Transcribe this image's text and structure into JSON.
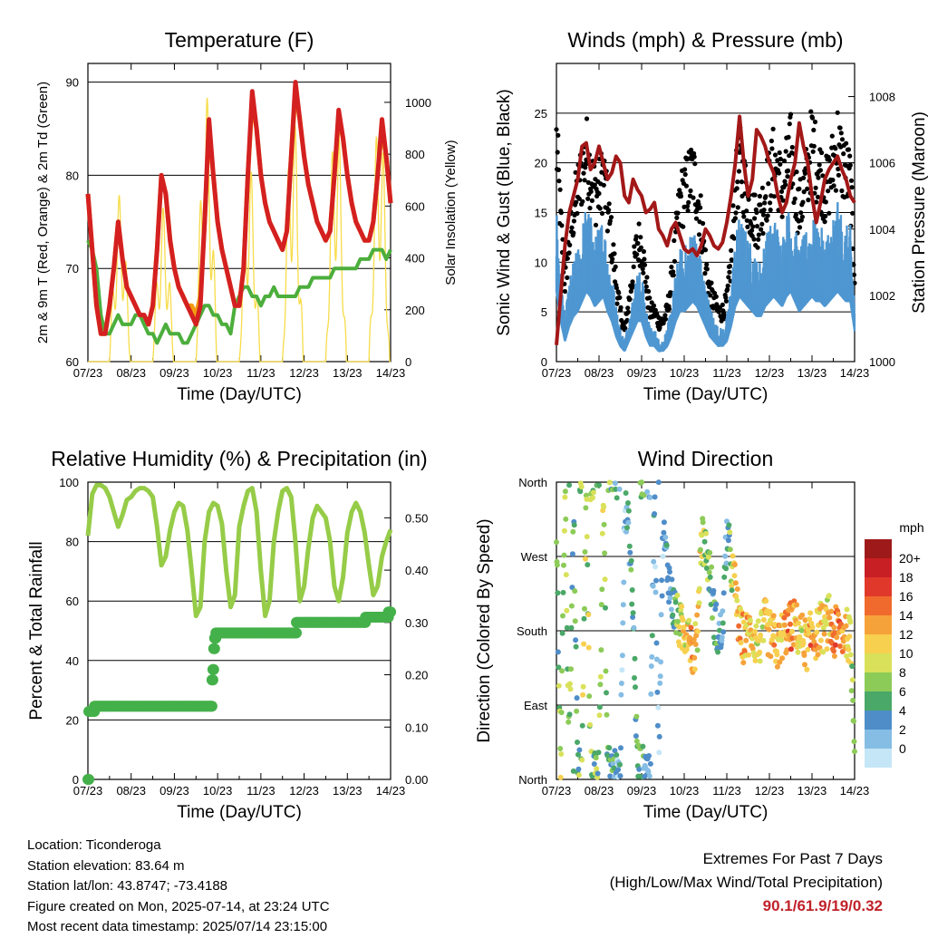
{
  "x_ticks": [
    "07/23",
    "08/23",
    "09/23",
    "10/23",
    "11/23",
    "12/23",
    "13/23",
    "14/23"
  ],
  "colors": {
    "temp_red": "#d42020",
    "temp_orange": "#f39c12",
    "dewpoint_green": "#4cae3c",
    "solar_yellow": "#f7dc4a",
    "wind_blue": "#4f97d1",
    "gust_black": "#000000",
    "pressure_maroon": "#a31818",
    "rh_lightgreen": "#96cc48",
    "precip_green": "#44b04a"
  },
  "chart_data": [
    {
      "id": "temperature",
      "type": "line",
      "title": "Temperature (F)",
      "xlabel": "Time (Day/UTC)",
      "ylabel": "2m & 9m T (Red, Orange) & 2m Td (Green)",
      "ylabel_right": "Solar Insolation (Yellow)",
      "ylim": [
        60,
        92
      ],
      "ylim_right": [
        0,
        1150
      ],
      "yticks": [
        60,
        70,
        80,
        90
      ],
      "yticks_right": [
        0,
        200,
        400,
        600,
        800,
        1000
      ],
      "x_days": [
        0,
        0.1,
        0.2,
        0.3,
        0.4,
        0.5,
        0.6,
        0.7,
        0.8,
        0.9,
        1.0,
        1.1,
        1.2,
        1.3,
        1.4,
        1.5,
        1.6,
        1.7,
        1.8,
        1.9,
        2.0,
        2.1,
        2.2,
        2.3,
        2.4,
        2.5,
        2.6,
        2.7,
        2.8,
        2.9,
        3.0,
        3.1,
        3.2,
        3.3,
        3.4,
        3.5,
        3.6,
        3.7,
        3.8,
        3.9,
        4.0,
        4.1,
        4.2,
        4.3,
        4.4,
        4.5,
        4.6,
        4.7,
        4.8,
        4.9,
        5.0,
        5.1,
        5.2,
        5.3,
        5.4,
        5.5,
        5.6,
        5.7,
        5.8,
        5.9,
        6.0,
        6.1,
        6.2,
        6.3,
        6.4,
        6.5,
        6.6,
        6.7,
        6.8,
        6.9,
        7.0
      ],
      "series": [
        {
          "name": "2m T",
          "color": "temp_red",
          "values": [
            78,
            72,
            66,
            63,
            63,
            66,
            70,
            75,
            71,
            68,
            67,
            66,
            65,
            65,
            64,
            66,
            72,
            80,
            78,
            73,
            70,
            68,
            67,
            66,
            65,
            64,
            66,
            75,
            86,
            80,
            75,
            72,
            70,
            68,
            66,
            66,
            70,
            80,
            89,
            85,
            80,
            77,
            75,
            74,
            73,
            72,
            74,
            82,
            90,
            86,
            82,
            79,
            77,
            75,
            74,
            73,
            74,
            80,
            87,
            84,
            80,
            77,
            75,
            74,
            73,
            73,
            75,
            80,
            86,
            82,
            77
          ]
        },
        {
          "name": "9m T",
          "color": "temp_orange",
          "values": [
            78,
            72,
            66,
            63,
            63,
            66,
            70,
            75,
            71,
            68,
            67,
            66,
            65,
            65,
            64,
            66,
            72,
            80,
            78,
            73,
            70,
            68,
            67,
            66,
            66,
            65,
            67,
            75,
            85,
            80,
            75,
            72,
            70,
            68,
            66,
            66,
            70,
            80,
            88,
            85,
            80,
            77,
            75,
            74,
            73,
            72,
            74,
            82,
            89,
            86,
            82,
            79,
            77,
            75,
            74,
            73,
            74,
            80,
            86,
            84,
            80,
            77,
            75,
            74,
            73,
            73,
            75,
            80,
            85,
            82,
            77
          ]
        },
        {
          "name": "2m Td",
          "color": "dewpoint_green",
          "values": [
            73,
            72,
            70,
            65,
            63,
            63,
            64,
            65,
            64,
            64,
            64,
            65,
            65,
            64,
            63,
            63,
            62,
            63,
            64,
            63,
            63,
            63,
            62,
            62,
            63,
            64,
            65,
            66,
            66,
            65,
            65,
            64,
            64,
            63,
            66,
            67,
            68,
            68,
            67,
            67,
            66,
            67,
            67,
            68,
            67,
            67,
            67,
            67,
            67,
            68,
            68,
            68,
            69,
            69,
            69,
            69,
            69,
            70,
            70,
            70,
            70,
            70,
            70,
            71,
            71,
            71,
            72,
            72,
            72,
            71,
            72
          ]
        }
      ]
    },
    {
      "id": "winds",
      "type": "scatter",
      "title": "Winds (mph) & Pressure (mb)",
      "xlabel": "Time (Day/UTC)",
      "ylabel": "Sonic Wind & Gust (Blue, Black)",
      "ylabel_right": "Station Pressure (Maroon)",
      "ylim": [
        0,
        30
      ],
      "ylim_right": [
        1000,
        1009
      ],
      "yticks": [
        0,
        5,
        10,
        15,
        20,
        25
      ],
      "yticks_right": [
        1000,
        1002,
        1004,
        1006,
        1008
      ],
      "x_days": [
        0,
        0.1,
        0.2,
        0.3,
        0.4,
        0.5,
        0.6,
        0.7,
        0.8,
        0.9,
        1.0,
        1.1,
        1.2,
        1.3,
        1.4,
        1.5,
        1.6,
        1.7,
        1.8,
        1.9,
        2.0,
        2.1,
        2.2,
        2.3,
        2.4,
        2.5,
        2.6,
        2.7,
        2.8,
        2.9,
        3.0,
        3.1,
        3.2,
        3.3,
        3.4,
        3.5,
        3.6,
        3.7,
        3.8,
        3.9,
        4.0,
        4.1,
        4.2,
        4.3,
        4.4,
        4.5,
        4.6,
        4.7,
        4.8,
        4.9,
        5.0,
        5.1,
        5.2,
        5.3,
        5.4,
        5.5,
        5.6,
        5.7,
        5.8,
        5.9,
        6.0,
        6.1,
        6.2,
        6.3,
        6.4,
        6.5,
        6.6,
        6.7,
        6.8,
        6.9,
        7.0
      ],
      "series": [
        {
          "name": "Sonic Wind",
          "color": "wind_blue",
          "values": [
            14,
            8,
            4,
            7,
            9,
            10,
            12,
            14,
            13,
            11,
            12,
            13,
            10,
            8,
            5,
            3,
            2,
            4,
            6,
            8,
            8,
            5,
            3,
            3,
            2,
            2,
            3,
            5,
            8,
            10,
            10,
            11,
            12,
            11,
            9,
            7,
            5,
            4,
            3,
            3,
            4,
            7,
            11,
            13,
            12,
            11,
            10,
            9,
            9,
            11,
            12,
            13,
            12,
            11,
            13,
            14,
            12,
            10,
            11,
            12,
            13,
            12,
            12,
            11,
            12,
            13,
            14,
            13,
            12,
            12,
            6
          ]
        },
        {
          "name": "Gust",
          "color": "gust_black",
          "values": [
            22,
            14,
            8,
            12,
            15,
            17,
            19,
            21,
            19,
            17,
            17,
            19,
            15,
            12,
            8,
            5,
            3,
            6,
            9,
            12,
            12,
            8,
            5,
            5,
            4,
            4,
            5,
            8,
            12,
            16,
            17,
            18,
            19,
            17,
            14,
            10,
            7,
            6,
            5,
            5,
            6,
            10,
            17,
            20,
            18,
            16,
            15,
            14,
            15,
            17,
            18,
            20,
            19,
            17,
            19,
            21,
            18,
            15,
            17,
            19,
            22,
            20,
            19,
            17,
            18,
            20,
            22,
            20,
            19,
            18,
            9
          ]
        },
        {
          "name": "Station Pressure",
          "color": "pressure_maroon",
          "values": [
            1000.5,
            1002,
            1003.5,
            1004.5,
            1005,
            1005.5,
            1006.5,
            1006.6,
            1005.8,
            1006,
            1006.5,
            1006,
            1005.5,
            1005.7,
            1006.2,
            1006,
            1005,
            1004.8,
            1005.5,
            1005.2,
            1005,
            1004.5,
            1004.6,
            1004.8,
            1004,
            1003.8,
            1003.5,
            1004,
            1004.2,
            1003.8,
            1003.4,
            1003.3,
            1003.4,
            1003.2,
            1003.5,
            1004,
            1003.8,
            1003.5,
            1003.4,
            1003.6,
            1004.2,
            1005,
            1006,
            1007.4,
            1006,
            1005,
            1005.5,
            1007,
            1006.8,
            1006.5,
            1006,
            1005.7,
            1005,
            1004.5,
            1004.8,
            1005.5,
            1006,
            1007.2,
            1006.5,
            1006,
            1005,
            1004.2,
            1004.8,
            1005.5,
            1005.8,
            1006,
            1006.2,
            1005.8,
            1005.5,
            1005,
            1004.8
          ]
        }
      ]
    },
    {
      "id": "humidity",
      "type": "line",
      "title": "Relative Humidity (%) & Precipitation (in)",
      "xlabel": "Time (Day/UTC)",
      "ylabel": "Percent & Total Rainfall",
      "ylim": [
        0,
        100
      ],
      "ylim_right": [
        0,
        0.5682
      ],
      "yticks": [
        0,
        20,
        40,
        60,
        80,
        100
      ],
      "yticks_right": [
        "0.00",
        "0.10",
        "0.20",
        "0.30",
        "0.40",
        "0.50"
      ],
      "x_days": [
        0,
        0.1,
        0.2,
        0.3,
        0.4,
        0.5,
        0.6,
        0.7,
        0.8,
        0.9,
        1.0,
        1.1,
        1.2,
        1.3,
        1.4,
        1.5,
        1.6,
        1.7,
        1.8,
        1.9,
        2.0,
        2.1,
        2.2,
        2.3,
        2.4,
        2.5,
        2.6,
        2.7,
        2.8,
        2.9,
        3.0,
        3.1,
        3.2,
        3.3,
        3.4,
        3.5,
        3.6,
        3.7,
        3.8,
        3.9,
        4.0,
        4.1,
        4.2,
        4.3,
        4.4,
        4.5,
        4.6,
        4.7,
        4.8,
        4.9,
        5.0,
        5.1,
        5.2,
        5.3,
        5.4,
        5.5,
        5.6,
        5.7,
        5.8,
        5.9,
        6.0,
        6.1,
        6.2,
        6.3,
        6.4,
        6.5,
        6.6,
        6.7,
        6.8,
        6.9,
        7.0
      ],
      "series": [
        {
          "name": "Relative Humidity",
          "color": "rh_lightgreen",
          "values": [
            82,
            96,
            99,
            99,
            98,
            95,
            90,
            85,
            89,
            94,
            95,
            97,
            98,
            98,
            97,
            95,
            85,
            72,
            75,
            84,
            90,
            93,
            92,
            84,
            70,
            55,
            58,
            80,
            90,
            93,
            92,
            86,
            70,
            58,
            62,
            85,
            92,
            97,
            98,
            90,
            70,
            55,
            60,
            80,
            90,
            97,
            98,
            95,
            80,
            60,
            65,
            78,
            88,
            92,
            90,
            88,
            80,
            65,
            60,
            68,
            83,
            90,
            93,
            90,
            83,
            72,
            62,
            65,
            75,
            80,
            84
          ]
        }
      ],
      "precip_steps": [
        [
          0,
          0
        ],
        [
          0.02,
          0.13
        ],
        [
          0.15,
          0.14
        ],
        [
          2.85,
          0.14
        ],
        [
          2.87,
          0.19
        ],
        [
          2.89,
          0.21
        ],
        [
          2.91,
          0.25
        ],
        [
          2.93,
          0.27
        ],
        [
          2.96,
          0.28
        ],
        [
          4.8,
          0.28
        ],
        [
          4.82,
          0.3
        ],
        [
          6.4,
          0.3
        ],
        [
          6.42,
          0.31
        ],
        [
          6.9,
          0.31
        ],
        [
          6.95,
          0.32
        ],
        [
          7.0,
          0.32
        ]
      ]
    },
    {
      "id": "wind_direction",
      "type": "scatter",
      "title": "Wind Direction",
      "xlabel": "Time (Day/UTC)",
      "ylabel": "Direction (Colored By Speed)",
      "ylim": [
        0,
        360
      ],
      "ytick_values": [
        0,
        90,
        180,
        270,
        360
      ],
      "ytick_labels": [
        "North",
        "East",
        "South",
        "West",
        "North"
      ],
      "colorbar_title": "mph",
      "colorbar_labels": [
        "20+",
        "18",
        "16",
        "14",
        "12",
        "10",
        "8",
        "6",
        "4",
        "2",
        "0"
      ],
      "colorbar_colors": [
        "#9e1a1a",
        "#c81f25",
        "#e0392b",
        "#f06a2e",
        "#f6a23a",
        "#f7d050",
        "#d9e15a",
        "#8ccb58",
        "#4aa868",
        "#4f8dc9",
        "#86bde4",
        "#c5e6f6"
      ],
      "x_days": [
        0,
        0.1,
        0.2,
        0.3,
        0.4,
        0.5,
        0.6,
        0.7,
        0.8,
        0.9,
        1.0,
        1.1,
        1.2,
        1.3,
        1.4,
        1.5,
        1.6,
        1.7,
        1.8,
        1.9,
        2.0,
        2.1,
        2.2,
        2.3,
        2.4,
        2.5,
        2.6,
        2.7,
        2.8,
        2.9,
        3.0,
        3.1,
        3.2,
        3.3,
        3.4,
        3.5,
        3.6,
        3.7,
        3.8,
        3.9,
        4.0,
        4.1,
        4.2,
        4.3,
        4.4,
        4.5,
        4.6,
        4.7,
        4.8,
        4.9,
        5.0,
        5.1,
        5.2,
        5.3,
        5.4,
        5.5,
        5.6,
        5.7,
        5.8,
        5.9,
        6.0,
        6.1,
        6.2,
        6.3,
        6.4,
        6.5,
        6.6,
        6.7,
        6.8,
        6.9,
        7.0
      ],
      "direction_values": [
        300,
        10,
        355,
        20,
        355,
        5,
        15,
        355,
        5,
        10,
        20,
        350,
        10,
        15,
        5,
        20,
        330,
        300,
        200,
        20,
        10,
        15,
        5,
        350,
        25,
        300,
        260,
        220,
        200,
        185,
        175,
        190,
        150,
        170,
        300,
        280,
        250,
        200,
        170,
        180,
        300,
        260,
        230,
        180,
        170,
        175,
        180,
        165,
        170,
        190,
        175,
        170,
        160,
        175,
        180,
        185,
        190,
        175,
        170,
        160,
        180,
        175,
        185,
        180,
        195,
        170,
        185,
        175,
        180,
        165,
        60
      ],
      "speed_values": [
        6,
        10,
        9,
        8,
        6,
        7,
        8,
        9,
        8,
        7,
        8,
        9,
        7,
        6,
        4,
        3,
        2,
        4,
        5,
        6,
        6,
        4,
        3,
        3,
        2,
        2,
        3,
        5,
        8,
        10,
        11,
        12,
        13,
        12,
        10,
        8,
        6,
        5,
        4,
        4,
        5,
        8,
        12,
        14,
        13,
        12,
        11,
        10,
        10,
        12,
        13,
        14,
        13,
        12,
        14,
        15,
        13,
        11,
        12,
        13,
        15,
        13,
        12,
        11,
        12,
        14,
        16,
        14,
        13,
        12,
        6
      ]
    }
  ],
  "info": {
    "location": "Location: Ticonderoga",
    "elevation": "Station elevation: 83.64 m",
    "latlon": "Station lat/lon: 43.8747; -73.4188",
    "created": "Figure created on Mon, 2025-07-14, at 23:24 UTC",
    "recent": "Most recent data timestamp: 2025/07/14 23:15:00"
  },
  "extremes": {
    "title": "Extremes For Past 7 Days",
    "subtitle": "(High/Low/Max Wind/Total Precipitation)",
    "values": "90.1/61.9/19/0.32"
  }
}
